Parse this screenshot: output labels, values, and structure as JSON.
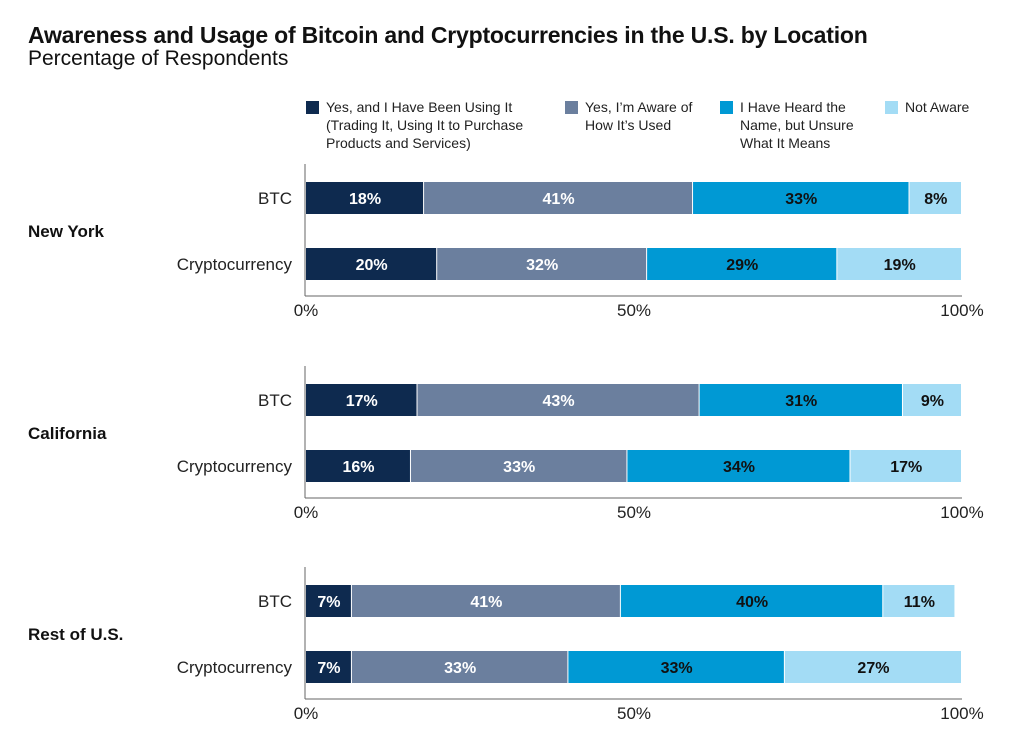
{
  "title": "Awareness and Usage of Bitcoin and Cryptocurrencies in the U.S. by Location",
  "subtitle": "Percentage of Respondents",
  "legend": [
    {
      "label": "Yes, and I Have Been Using It (Trading It, Using It to Purchase Products and Services)",
      "color": "#0e2a4f"
    },
    {
      "label": "Yes, I’m Aware of How It’s Used",
      "color": "#6b7f9e"
    },
    {
      "label": "I Have Heard the Name, but Unsure What It Means",
      "color": "#0099d4"
    },
    {
      "label": "Not Aware",
      "color": "#a3dcf5"
    }
  ],
  "chart_data": {
    "type": "bar",
    "orientation": "horizontal",
    "stacked": true,
    "xlim": [
      0,
      100
    ],
    "x_ticks": [
      "0%",
      "50%",
      "100%"
    ],
    "series": [
      {
        "name": "Yes, and I Have Been Using It (Trading It, Using It to Purchase Products and Services)",
        "color": "#0e2a4f"
      },
      {
        "name": "Yes, I’m Aware of How It’s Used",
        "color": "#6b7f9e"
      },
      {
        "name": "I Have Heard the Name, but Unsure What It Means",
        "color": "#0099d4"
      },
      {
        "name": "Not Aware",
        "color": "#a3dcf5"
      }
    ],
    "panels": [
      {
        "group": "New York",
        "categories": [
          "BTC",
          "Cryptocurrency"
        ],
        "values": [
          [
            18,
            41,
            33,
            8
          ],
          [
            20,
            32,
            29,
            19
          ]
        ]
      },
      {
        "group": "California",
        "categories": [
          "BTC",
          "Cryptocurrency"
        ],
        "values": [
          [
            17,
            43,
            31,
            9
          ],
          [
            16,
            33,
            34,
            17
          ]
        ]
      },
      {
        "group": "Rest of U.S.",
        "categories": [
          "BTC",
          "Cryptocurrency"
        ],
        "values": [
          [
            7,
            41,
            40,
            11
          ],
          [
            7,
            33,
            33,
            27
          ]
        ]
      }
    ]
  }
}
